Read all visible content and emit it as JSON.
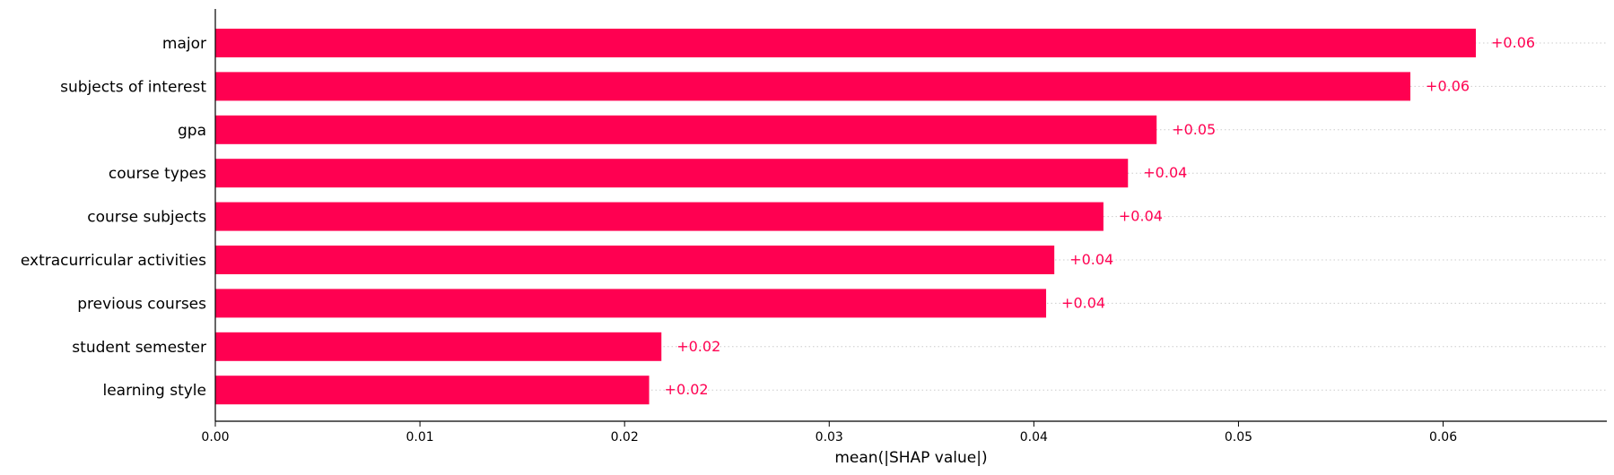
{
  "chart_data": {
    "type": "bar",
    "orientation": "horizontal",
    "categories": [
      "major",
      "subjects of interest",
      "gpa",
      "course types",
      "course subjects",
      "extracurricular activities",
      "previous courses",
      "student semester",
      "learning style"
    ],
    "values": [
      0.0616,
      0.0584,
      0.046,
      0.0446,
      0.0434,
      0.041,
      0.0406,
      0.0218,
      0.0212
    ],
    "value_labels": [
      "+0.06",
      "+0.06",
      "+0.05",
      "+0.04",
      "+0.04",
      "+0.04",
      "+0.04",
      "+0.02",
      "+0.02"
    ],
    "xlabel": "mean(|SHAP value|)",
    "xticks": [
      0.0,
      0.01,
      0.02,
      0.03,
      0.04,
      0.05,
      0.06
    ],
    "xtick_labels": [
      "0.00",
      "0.01",
      "0.02",
      "0.03",
      "0.04",
      "0.05",
      "0.06"
    ],
    "xlim": [
      0,
      0.068
    ],
    "grid": "dotted horizontal row lines",
    "bar_color": "#ff0051",
    "label_color": "#ff0051"
  }
}
